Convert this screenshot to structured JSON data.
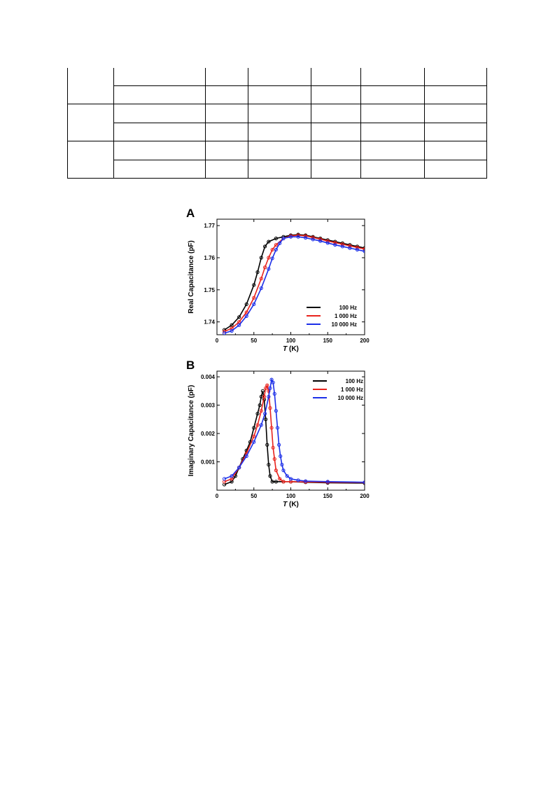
{
  "table": {
    "rows": 6,
    "row_groups": [
      2,
      2,
      2
    ],
    "cells_text": []
  },
  "chart_data": [
    {
      "type": "scatter",
      "panel_label": "A",
      "xlabel_italic": "T",
      "xlabel_rest": " (K)",
      "ylabel": "Real Capacitance (pF)",
      "xlim": [
        0,
        200
      ],
      "ylim": [
        1.736,
        1.772
      ],
      "xticks": [
        "0",
        "50",
        "100",
        "150",
        "200"
      ],
      "yticks": [
        "1.74",
        "1.75",
        "1.76",
        "1.77"
      ],
      "grid": false,
      "legend_position": "lower-right",
      "series": [
        {
          "name": "100 Hz",
          "color": "#000000",
          "x": [
            10,
            20,
            30,
            40,
            50,
            55,
            60,
            65,
            70,
            80,
            90,
            100,
            110,
            120,
            130,
            140,
            150,
            160,
            170,
            180,
            190,
            200
          ],
          "y": [
            1.7375,
            1.739,
            1.7415,
            1.7455,
            1.7515,
            1.7555,
            1.76,
            1.7635,
            1.765,
            1.766,
            1.7665,
            1.767,
            1.7672,
            1.767,
            1.7665,
            1.766,
            1.7655,
            1.765,
            1.7645,
            1.764,
            1.7635,
            1.763
          ]
        },
        {
          "name": "1 000 Hz",
          "color": "#e8221c",
          "x": [
            10,
            20,
            30,
            40,
            50,
            60,
            65,
            70,
            75,
            80,
            90,
            100,
            110,
            120,
            130,
            140,
            150,
            160,
            170,
            180,
            190,
            200
          ],
          "y": [
            1.737,
            1.738,
            1.74,
            1.743,
            1.7475,
            1.7535,
            1.757,
            1.76,
            1.7625,
            1.764,
            1.766,
            1.7668,
            1.767,
            1.7668,
            1.7663,
            1.7658,
            1.7652,
            1.7647,
            1.7642,
            1.7637,
            1.7632,
            1.7627
          ]
        },
        {
          "name": "10 000 Hz",
          "color": "#1c2fe8",
          "x": [
            10,
            20,
            30,
            40,
            50,
            60,
            70,
            75,
            80,
            85,
            90,
            100,
            110,
            120,
            130,
            140,
            150,
            160,
            170,
            180,
            190,
            200
          ],
          "y": [
            1.7365,
            1.7372,
            1.739,
            1.7418,
            1.7455,
            1.7505,
            1.7565,
            1.7598,
            1.7625,
            1.7645,
            1.766,
            1.7665,
            1.7665,
            1.7662,
            1.7657,
            1.7652,
            1.7646,
            1.764,
            1.7635,
            1.763,
            1.7625,
            1.762
          ]
        }
      ]
    },
    {
      "type": "scatter",
      "panel_label": "B",
      "xlabel_italic": "T",
      "xlabel_rest": " (K)",
      "ylabel": "Imaginary Capacitance (pF)",
      "xlim": [
        0,
        200
      ],
      "ylim": [
        0,
        0.0042
      ],
      "xticks": [
        "0",
        "50",
        "100",
        "150",
        "200"
      ],
      "yticks": [
        "0.001",
        "0.002",
        "0.003",
        "0.004"
      ],
      "grid": false,
      "legend_position": "top-right",
      "series": [
        {
          "name": "100 Hz",
          "color": "#000000",
          "x": [
            10,
            20,
            25,
            30,
            35,
            40,
            45,
            50,
            55,
            58,
            60,
            62,
            64,
            66,
            68,
            70,
            72,
            75,
            80,
            90,
            100,
            120,
            150,
            200
          ],
          "y": [
            0.0002,
            0.0003,
            0.0005,
            0.0008,
            0.0011,
            0.0014,
            0.0017,
            0.0022,
            0.0027,
            0.003,
            0.0033,
            0.0035,
            0.0032,
            0.0025,
            0.0016,
            0.0009,
            0.0005,
            0.0003,
            0.0003,
            0.0003,
            0.0003,
            0.00028,
            0.00026,
            0.00025
          ]
        },
        {
          "name": "1 000 Hz",
          "color": "#e8221c",
          "x": [
            10,
            20,
            30,
            40,
            50,
            55,
            60,
            64,
            66,
            68,
            70,
            72,
            74,
            76,
            78,
            80,
            85,
            90,
            100,
            120,
            150,
            200
          ],
          "y": [
            0.0003,
            0.0004,
            0.0008,
            0.0013,
            0.0019,
            0.0023,
            0.0028,
            0.0033,
            0.0036,
            0.0037,
            0.0035,
            0.0029,
            0.0022,
            0.0015,
            0.0011,
            0.0007,
            0.0004,
            0.0003,
            0.0003,
            0.00029,
            0.00028,
            0.00027
          ]
        },
        {
          "name": "10 000 Hz",
          "color": "#1c2fe8",
          "x": [
            10,
            20,
            30,
            40,
            50,
            60,
            65,
            70,
            72,
            74,
            76,
            78,
            80,
            82,
            84,
            86,
            88,
            90,
            95,
            100,
            110,
            120,
            150,
            200
          ],
          "y": [
            0.0004,
            0.0005,
            0.0008,
            0.0012,
            0.0017,
            0.0023,
            0.0027,
            0.0033,
            0.0036,
            0.0039,
            0.0038,
            0.0034,
            0.0028,
            0.0022,
            0.0016,
            0.0012,
            0.0009,
            0.0007,
            0.0005,
            0.0004,
            0.00035,
            0.00032,
            0.0003,
            0.00028
          ]
        }
      ]
    }
  ]
}
